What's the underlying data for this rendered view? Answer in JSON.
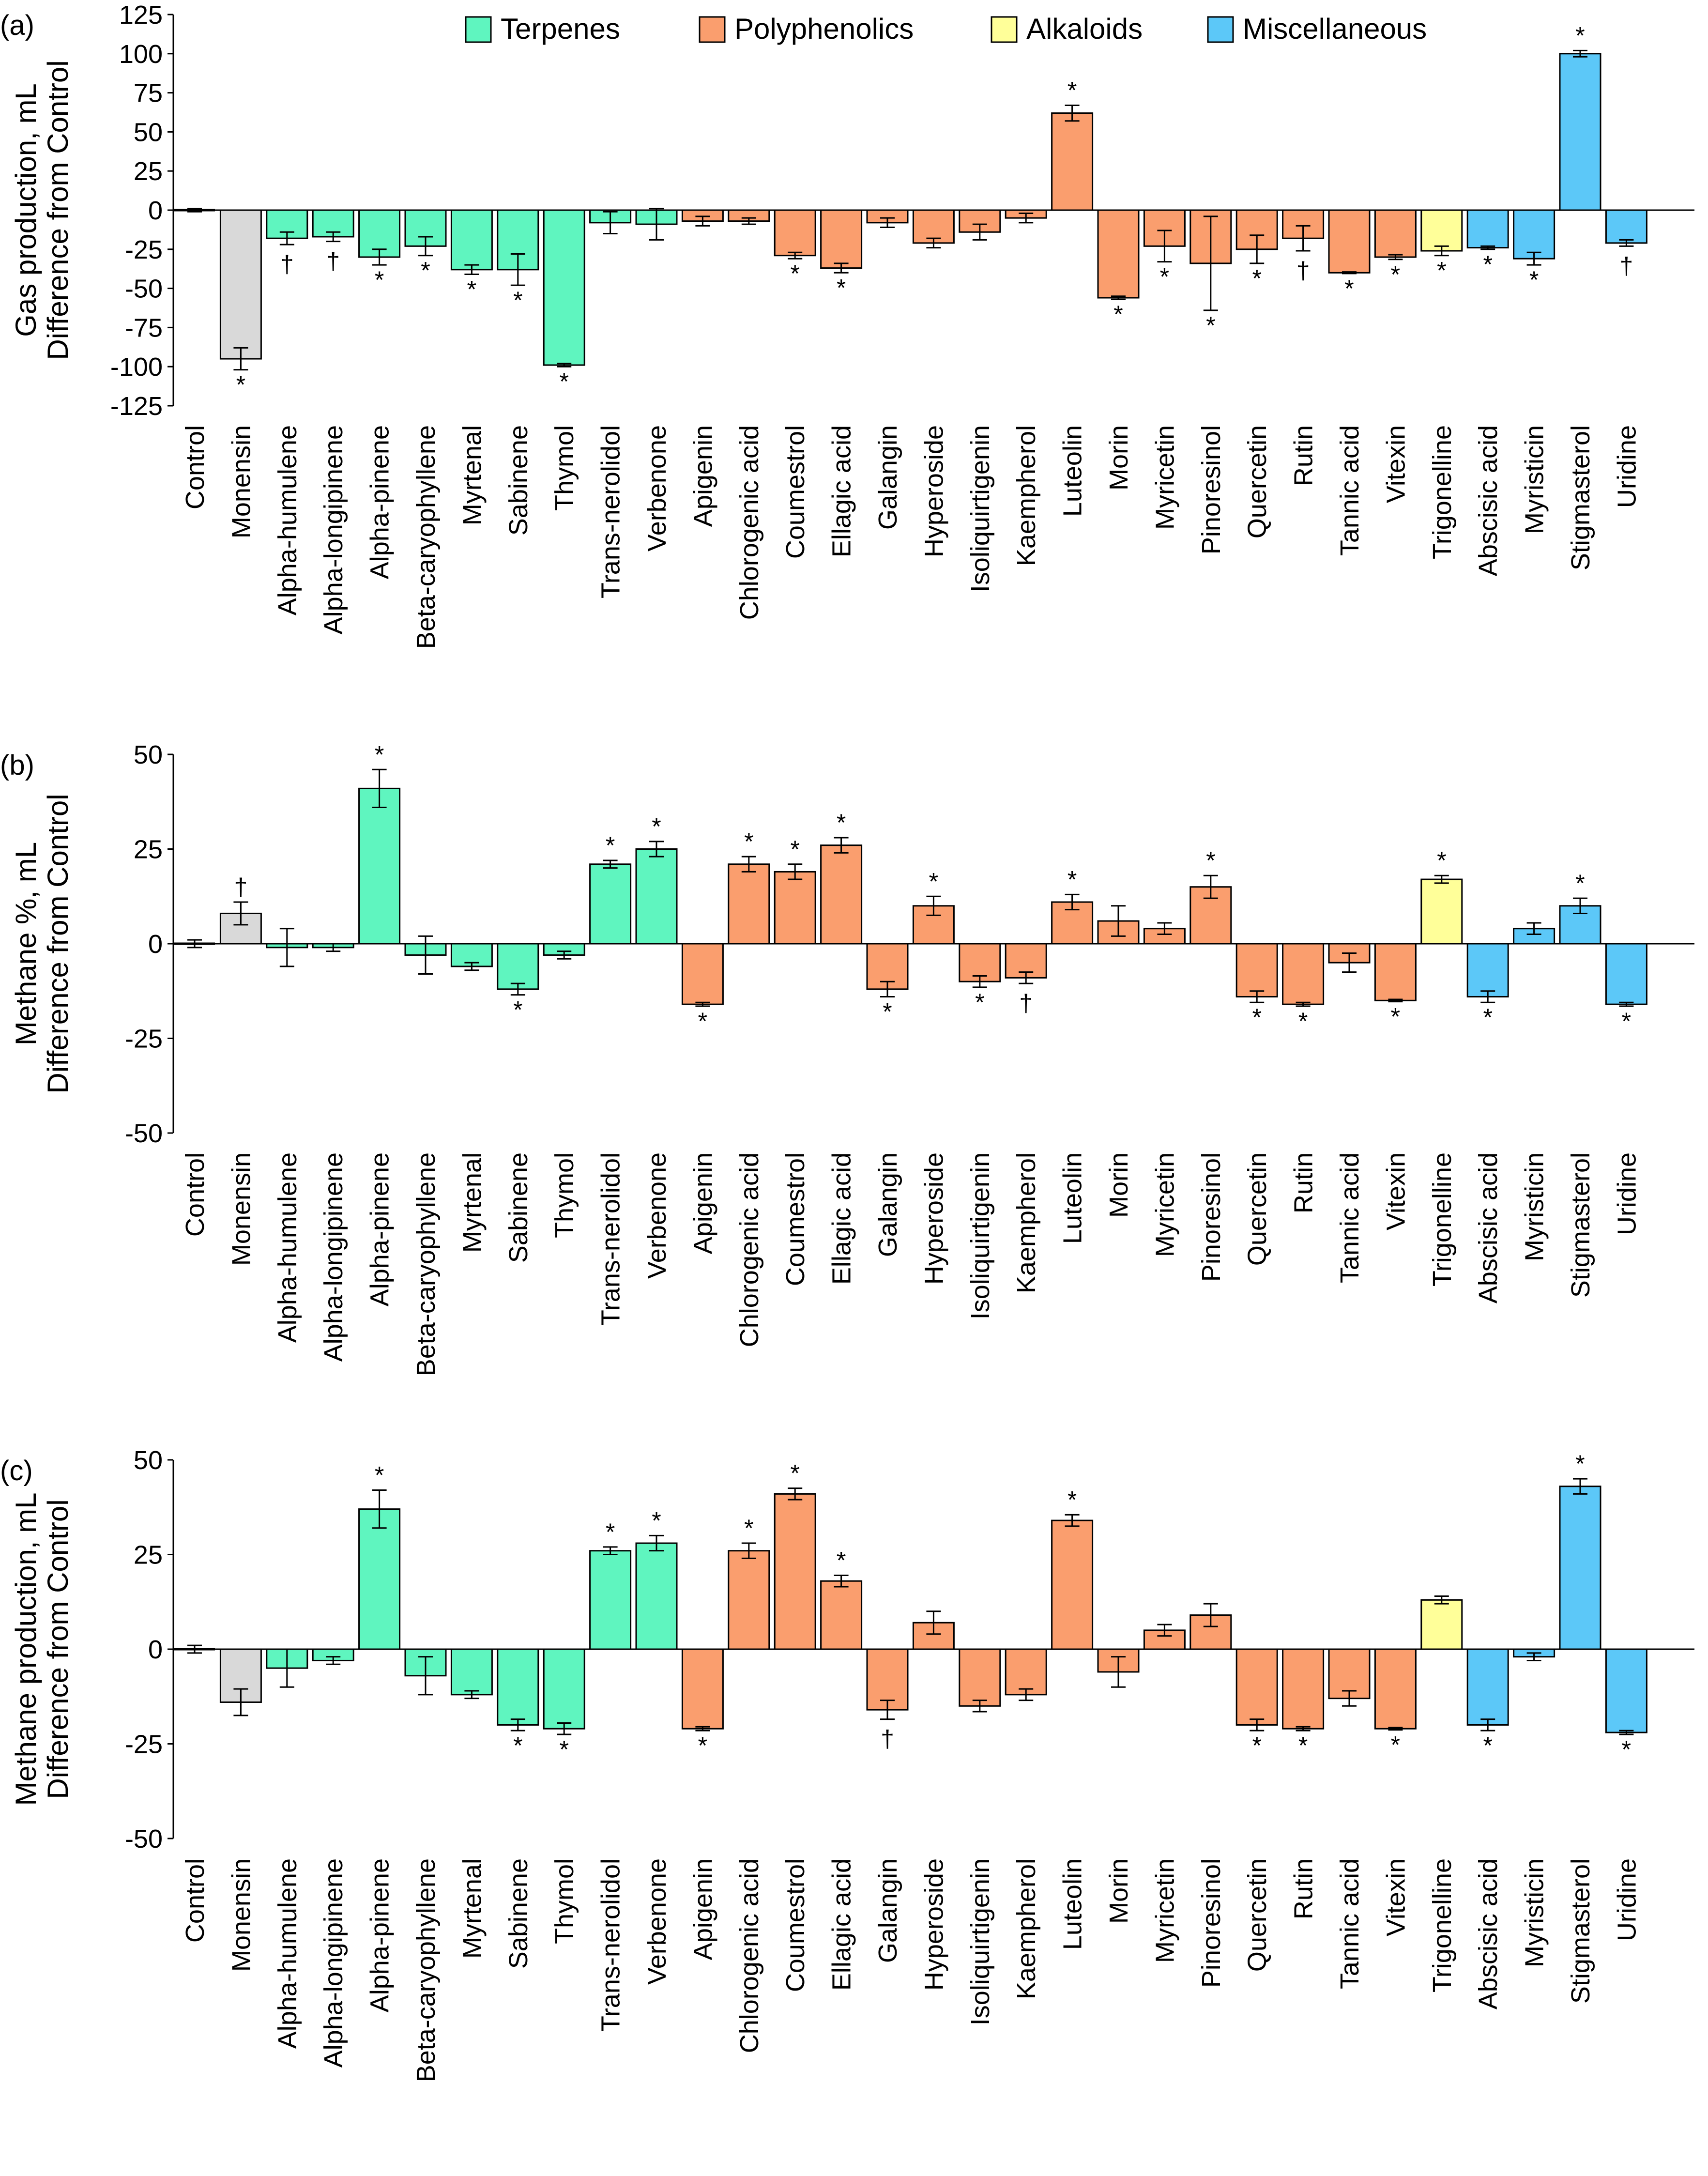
{
  "chart_data": [
    {
      "type": "bar",
      "panel_label": "(a)",
      "ylabel": [
        "Gas production, mL",
        "Difference from Control"
      ],
      "ylim": [
        -125,
        125
      ],
      "yticks": [
        125,
        100,
        75,
        50,
        25,
        0,
        -25,
        -50,
        -75,
        -100,
        -125
      ],
      "categories": [
        "Control",
        "Monensin",
        "Alpha-humulene",
        "Alpha-longipinene",
        "Alpha-pinene",
        "Beta-caryophyllene",
        "Myrtenal",
        "Sabinene",
        "Thymol",
        "Trans-nerolidol",
        "Verbenone",
        "Apigenin",
        "Chlorogenic acid",
        "Coumestrol",
        "Ellagic acid",
        "Galangin",
        "Hyperoside",
        "Isoliquirtigenin",
        "Kaempherol",
        "Luteolin",
        "Morin",
        "Myricetin",
        "Pinoresinol",
        "Quercetin",
        "Rutin",
        "Tannic acid",
        "Vitexin",
        "Trigonelline",
        "Abscisic acid",
        "Myristicin",
        "Stigmasterol",
        "Uridine"
      ],
      "groups": [
        "control",
        "control",
        "terp",
        "terp",
        "terp",
        "terp",
        "terp",
        "terp",
        "terp",
        "terp",
        "terp",
        "poly",
        "poly",
        "poly",
        "poly",
        "poly",
        "poly",
        "poly",
        "poly",
        "poly",
        "poly",
        "poly",
        "poly",
        "poly",
        "poly",
        "poly",
        "poly",
        "alk",
        "misc",
        "misc",
        "misc",
        "misc"
      ],
      "values": [
        0,
        -95,
        -18,
        -17,
        -30,
        -23,
        -38,
        -38,
        -99,
        -8,
        -9,
        -7,
        -7,
        -29,
        -37,
        -8,
        -21,
        -14,
        -5,
        62,
        -56,
        -23,
        -34,
        -25,
        -18,
        -40,
        -30,
        -26,
        -24,
        -31,
        100,
        -21
      ],
      "errors": [
        1,
        7,
        4,
        3,
        5,
        6,
        3,
        10,
        1,
        7,
        10,
        3,
        2,
        2,
        3,
        3,
        3,
        5,
        3,
        5,
        1,
        10,
        30,
        9,
        8,
        0.5,
        1.5,
        3,
        1,
        4,
        2,
        2
      ],
      "significance": [
        "",
        "*",
        "†",
        "†",
        "*",
        "*",
        "*",
        "*",
        "*",
        "",
        "",
        "",
        "",
        "*",
        "*",
        "",
        "",
        "",
        "",
        "*",
        "*",
        "*",
        "*",
        "*",
        "†",
        "*",
        "*",
        "*",
        "*",
        "*",
        "*",
        "†"
      ]
    },
    {
      "type": "bar",
      "panel_label": "(b)",
      "ylabel": [
        "Methane %, mL",
        "Difference from Control"
      ],
      "ylim": [
        -50,
        50
      ],
      "yticks": [
        50,
        25,
        0,
        -25,
        -50
      ],
      "categories": [
        "Control",
        "Monensin",
        "Alpha-humulene",
        "Alpha-longipinene",
        "Alpha-pinene",
        "Beta-caryophyllene",
        "Myrtenal",
        "Sabinene",
        "Thymol",
        "Trans-nerolidol",
        "Verbenone",
        "Apigenin",
        "Chlorogenic acid",
        "Coumestrol",
        "Ellagic acid",
        "Galangin",
        "Hyperoside",
        "Isoliquirtigenin",
        "Kaempherol",
        "Luteolin",
        "Morin",
        "Myricetin",
        "Pinoresinol",
        "Quercetin",
        "Rutin",
        "Tannic acid",
        "Vitexin",
        "Trigonelline",
        "Abscisic acid",
        "Myristicin",
        "Stigmasterol",
        "Uridine"
      ],
      "groups": [
        "control",
        "control",
        "terp",
        "terp",
        "terp",
        "terp",
        "terp",
        "terp",
        "terp",
        "terp",
        "terp",
        "poly",
        "poly",
        "poly",
        "poly",
        "poly",
        "poly",
        "poly",
        "poly",
        "poly",
        "poly",
        "poly",
        "poly",
        "poly",
        "poly",
        "poly",
        "poly",
        "alk",
        "misc",
        "misc",
        "misc",
        "misc"
      ],
      "values": [
        0,
        8,
        -1,
        -1,
        41,
        -3,
        -6,
        -12,
        -3,
        21,
        25,
        -16,
        21,
        19,
        26,
        -12,
        10,
        -10,
        -9,
        11,
        6,
        4,
        15,
        -14,
        -16,
        -5,
        -15,
        17,
        -14,
        4,
        10,
        -16
      ],
      "errors": [
        1,
        3,
        5,
        1,
        5,
        5,
        1,
        1.5,
        1,
        1,
        2,
        0.5,
        2,
        2,
        2,
        2,
        2.5,
        1.5,
        1.5,
        2,
        4,
        1.5,
        3,
        1.5,
        0.5,
        2.5,
        0.3,
        1,
        1.5,
        1.5,
        2,
        0.5
      ],
      "significance": [
        "",
        "†",
        "",
        "",
        "*",
        "",
        "",
        "*",
        "",
        "*",
        "*",
        "*",
        "*",
        "*",
        "*",
        "*",
        "*",
        "*",
        "†",
        "*",
        "",
        "",
        "*",
        "*",
        "*",
        "",
        "*",
        "*",
        "*",
        "",
        "*",
        "*"
      ]
    },
    {
      "type": "bar",
      "panel_label": "(c)",
      "ylabel": [
        "Methane production, mL",
        "Difference from Control"
      ],
      "ylim": [
        -50,
        50
      ],
      "yticks": [
        50,
        25,
        0,
        -25,
        -50
      ],
      "categories": [
        "Control",
        "Monensin",
        "Alpha-humulene",
        "Alpha-longipinene",
        "Alpha-pinene",
        "Beta-caryophyllene",
        "Myrtenal",
        "Sabinene",
        "Thymol",
        "Trans-nerolidol",
        "Verbenone",
        "Apigenin",
        "Chlorogenic acid",
        "Coumestrol",
        "Ellagic acid",
        "Galangin",
        "Hyperoside",
        "Isoliquirtigenin",
        "Kaempherol",
        "Luteolin",
        "Morin",
        "Myricetin",
        "Pinoresinol",
        "Quercetin",
        "Rutin",
        "Tannic acid",
        "Vitexin",
        "Trigonelline",
        "Abscisic acid",
        "Myristicin",
        "Stigmasterol",
        "Uridine"
      ],
      "groups": [
        "control",
        "control",
        "terp",
        "terp",
        "terp",
        "terp",
        "terp",
        "terp",
        "terp",
        "terp",
        "terp",
        "poly",
        "poly",
        "poly",
        "poly",
        "poly",
        "poly",
        "poly",
        "poly",
        "poly",
        "poly",
        "poly",
        "poly",
        "poly",
        "poly",
        "poly",
        "poly",
        "alk",
        "misc",
        "misc",
        "misc",
        "misc"
      ],
      "values": [
        0,
        -14,
        -5,
        -3,
        37,
        -7,
        -12,
        -20,
        -21,
        26,
        28,
        -21,
        26,
        41,
        18,
        -16,
        7,
        -15,
        -12,
        34,
        -6,
        5,
        9,
        -20,
        -21,
        -13,
        -21,
        13,
        -20,
        -2,
        43,
        -22
      ],
      "errors": [
        1,
        3.5,
        5,
        1,
        5,
        5,
        1,
        1.5,
        1.5,
        1,
        2,
        0.5,
        2,
        1.5,
        1.5,
        2.5,
        3,
        1.5,
        1.5,
        1.5,
        4,
        1.5,
        3,
        1.5,
        0.5,
        2,
        0.3,
        1,
        1.5,
        1,
        2,
        0.5
      ],
      "significance": [
        "",
        "",
        "",
        "",
        "*",
        "",
        "",
        "*",
        "*",
        "*",
        "*",
        "*",
        "*",
        "*",
        "*",
        "†",
        "",
        "",
        "",
        "*",
        "",
        "",
        "",
        "*",
        "*",
        "",
        "*",
        "",
        "*",
        "",
        "*",
        "*"
      ]
    }
  ],
  "legend": [
    {
      "key": "terp",
      "label": "Terpenes"
    },
    {
      "key": "poly",
      "label": "Polyphenolics"
    },
    {
      "key": "alk",
      "label": "Alkaloids"
    },
    {
      "key": "misc",
      "label": "Miscellaneous"
    }
  ],
  "colors": {
    "control": "#d9d9d9",
    "terp": "#5ff5bf",
    "poly": "#fa9e6e",
    "alk": "#ffff99",
    "misc": "#5cc8f8"
  }
}
